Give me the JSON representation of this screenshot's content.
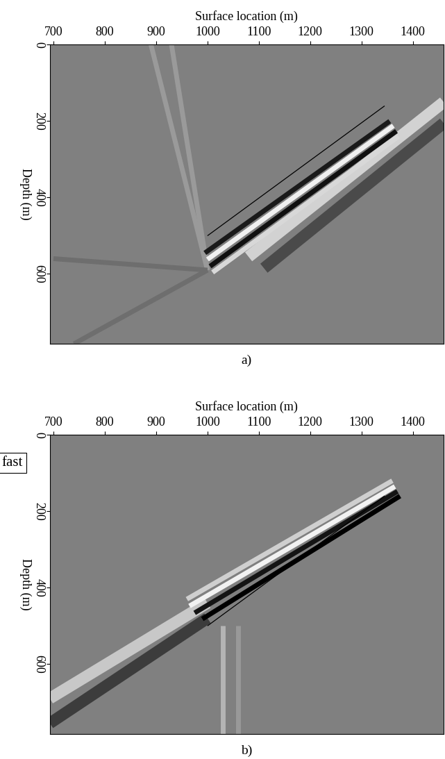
{
  "chart_data": [
    {
      "type": "image",
      "caption": "a)",
      "x_label": "Surface location (m)",
      "y_label": "Depth (m)",
      "xlim": [
        693,
        1460
      ],
      "ylim": [
        783,
        0
      ],
      "xticks": [
        700,
        800,
        900,
        1000,
        1100,
        1200,
        1300,
        1400
      ],
      "yticks": [
        0,
        200,
        400,
        600
      ],
      "grid": false,
      "series": [
        {
          "color": "#9a9a9a",
          "line_style": "wide",
          "x": [
            1000,
            890
          ],
          "y": [
            590,
            0
          ]
        },
        {
          "color": "#9a9a9a",
          "line_style": "wide",
          "x": [
            1000,
            930
          ],
          "y": [
            590,
            0
          ]
        },
        {
          "color": "#6e6e6e",
          "line_style": "wide",
          "x": [
            1000,
            740
          ],
          "y": [
            590,
            783
          ]
        },
        {
          "color": "#6e6e6e",
          "line_style": "wide",
          "x": [
            1000,
            700
          ],
          "y": [
            590,
            560
          ]
        },
        {
          "color": "#d2d2d2",
          "line_style": "broad",
          "x": [
            1080,
            1460
          ],
          "y": [
            555,
            150
          ]
        },
        {
          "color": "#4a4a4a",
          "line_style": "broad",
          "x": [
            1110,
            1460
          ],
          "y": [
            585,
            205
          ]
        },
        {
          "color": "#1a1a1a",
          "line_style": "wide",
          "x": [
            995,
            1355
          ],
          "y": [
            545,
            200
          ]
        },
        {
          "color": "#f0f0f0",
          "line_style": "wide",
          "x": [
            1000,
            1362
          ],
          "y": [
            562,
            212
          ]
        },
        {
          "color": "#101010",
          "line_style": "wide",
          "x": [
            1005,
            1368
          ],
          "y": [
            580,
            226
          ]
        },
        {
          "color": "#d8d8d8",
          "line_style": "wide",
          "x": [
            1010,
            1372
          ],
          "y": [
            596,
            240
          ]
        },
        {
          "color": "#000000",
          "line_style": "solid",
          "x": [
            1000,
            1345
          ],
          "y": [
            500,
            160
          ]
        }
      ]
    },
    {
      "type": "image",
      "caption": "b)",
      "x_label": "Surface location (m)",
      "y_label": "Depth (m)",
      "xlim": [
        693,
        1460
      ],
      "ylim": [
        783,
        0
      ],
      "xticks": [
        700,
        800,
        900,
        1000,
        1100,
        1200,
        1300,
        1400
      ],
      "yticks": [
        0,
        200,
        400,
        600
      ],
      "grid": false,
      "annotations": [
        {
          "text": "fast"
        }
      ],
      "series": [
        {
          "color": "#b4b4b4",
          "line_style": "wide",
          "x": [
            1030,
            1030
          ],
          "y": [
            500,
            783
          ]
        },
        {
          "color": "#999999",
          "line_style": "wide",
          "x": [
            1060,
            1060
          ],
          "y": [
            500,
            783
          ]
        },
        {
          "color": "#c8c8c8",
          "line_style": "broad",
          "x": [
            693,
            1000
          ],
          "y": [
            690,
            440
          ]
        },
        {
          "color": "#3c3c3c",
          "line_style": "broad",
          "x": [
            693,
            1000
          ],
          "y": [
            755,
            480
          ]
        },
        {
          "color": "#cfcfcf",
          "line_style": "wide",
          "x": [
            960,
            1360
          ],
          "y": [
            430,
            120
          ]
        },
        {
          "color": "#f2f2f2",
          "line_style": "wide",
          "x": [
            965,
            1365
          ],
          "y": [
            448,
            135
          ]
        },
        {
          "color": "#141414",
          "line_style": "wide",
          "x": [
            975,
            1370
          ],
          "y": [
            466,
            148
          ]
        },
        {
          "color": "#000000",
          "line_style": "wide",
          "x": [
            990,
            1375
          ],
          "y": [
            482,
            160
          ]
        },
        {
          "color": "#000000",
          "line_style": "solid",
          "x": [
            1000,
            1345
          ],
          "y": [
            500,
            160
          ]
        }
      ]
    }
  ]
}
